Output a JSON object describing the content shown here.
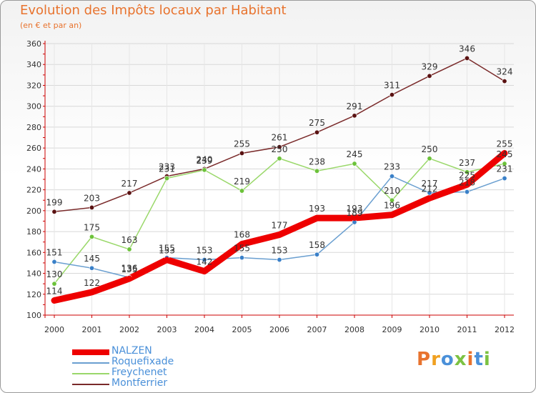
{
  "title": "Evolution des Impôts locaux par Habitant",
  "subtitle": "(en € et par an)",
  "logo": "Proxiti",
  "colors": {
    "title": "#e8732e",
    "axis": "#cc0000",
    "grid": "#d8d8d8",
    "tick_label": "#333333",
    "value_label": "#333333",
    "legend_text": "#4a90d9"
  },
  "chart_data": {
    "type": "line",
    "title": "Evolution des Impôts locaux par Habitant",
    "subtitle": "(en € et par an)",
    "xlabel": "",
    "ylabel": "",
    "x": [
      "2000",
      "2001",
      "2002",
      "2003",
      "2004",
      "2005",
      "2006",
      "2007",
      "2008",
      "2009",
      "2010",
      "2011",
      "2012"
    ],
    "ylim": [
      100,
      360
    ],
    "yticks": [
      100,
      120,
      140,
      160,
      180,
      200,
      220,
      240,
      260,
      280,
      300,
      320,
      340,
      360
    ],
    "grid": true,
    "legend_position": "bottom-left",
    "series": [
      {
        "name": "Montferrier",
        "color": "#7a2a2a",
        "point_color": "#5a1212",
        "values": [
          199,
          203,
          217,
          233,
          240,
          255,
          261,
          275,
          291,
          311,
          329,
          346,
          324
        ]
      },
      {
        "name": "Freychenet",
        "color": "#9ad86a",
        "point_color": "#6cc23a",
        "values": [
          130,
          175,
          163,
          231,
          239,
          219,
          250,
          238,
          245,
          210,
          250,
          237,
          245
        ]
      },
      {
        "name": "Roquefixade",
        "color": "#6a9fd0",
        "point_color": "#3a80c8",
        "values": [
          151,
          145,
          136,
          155,
          153,
          155,
          153,
          158,
          189,
          233,
          217,
          218,
          231
        ]
      },
      {
        "name": "NALZEN",
        "color": "#ee0000",
        "point_color": "#ee0000",
        "values": [
          114,
          122,
          135,
          153,
          142,
          168,
          177,
          193,
          193,
          196,
          212,
          225,
          255
        ]
      }
    ]
  }
}
